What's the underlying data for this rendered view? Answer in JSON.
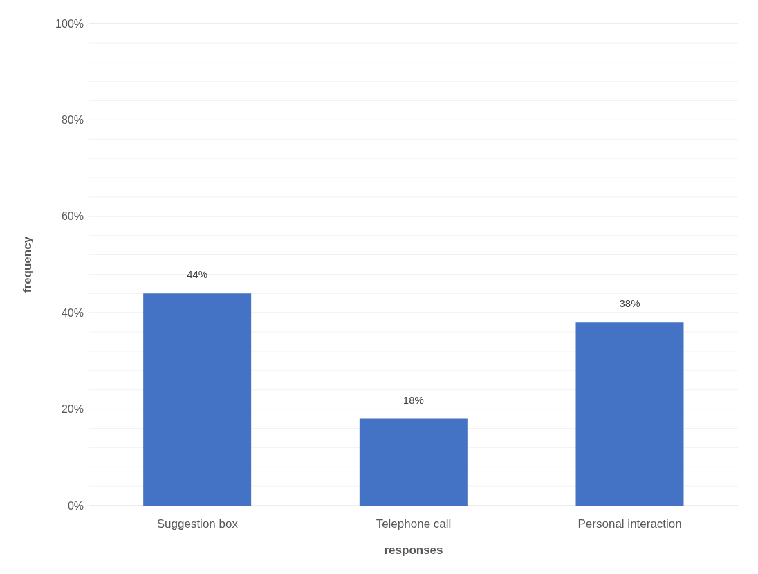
{
  "chart_data": {
    "type": "bar",
    "xlabel": "responses",
    "ylabel": "frequency",
    "categories": [
      "Suggestion box",
      "Telephone call",
      "Personal interaction"
    ],
    "values": [
      44,
      18,
      38
    ],
    "color": "#4472c4",
    "value_labels": [
      "44%",
      "18%",
      "38%"
    ],
    "ylim": [
      0,
      100
    ],
    "yticks": [
      {
        "value": 0,
        "label": "0%"
      },
      {
        "value": 4,
        "label": null
      },
      {
        "value": 8,
        "label": null
      },
      {
        "value": 12,
        "label": null
      },
      {
        "value": 16,
        "label": null
      },
      {
        "value": 20,
        "label": "20%"
      },
      {
        "value": 24,
        "label": null
      },
      {
        "value": 28,
        "label": null
      },
      {
        "value": 32,
        "label": null
      },
      {
        "value": 36,
        "label": null
      },
      {
        "value": 40,
        "label": "40%"
      },
      {
        "value": 44,
        "label": null
      },
      {
        "value": 48,
        "label": null
      },
      {
        "value": 52,
        "label": null
      },
      {
        "value": 56,
        "label": null
      },
      {
        "value": 60,
        "label": "60%"
      },
      {
        "value": 64,
        "label": null
      },
      {
        "value": 68,
        "label": null
      },
      {
        "value": 72,
        "label": null
      },
      {
        "value": 76,
        "label": null
      },
      {
        "value": 80,
        "label": "80%"
      },
      {
        "value": 84,
        "label": null
      },
      {
        "value": 88,
        "label": null
      },
      {
        "value": 92,
        "label": null
      },
      {
        "value": 96,
        "label": null
      },
      {
        "value": 100,
        "label": "100%"
      }
    ],
    "grid": "y"
  }
}
